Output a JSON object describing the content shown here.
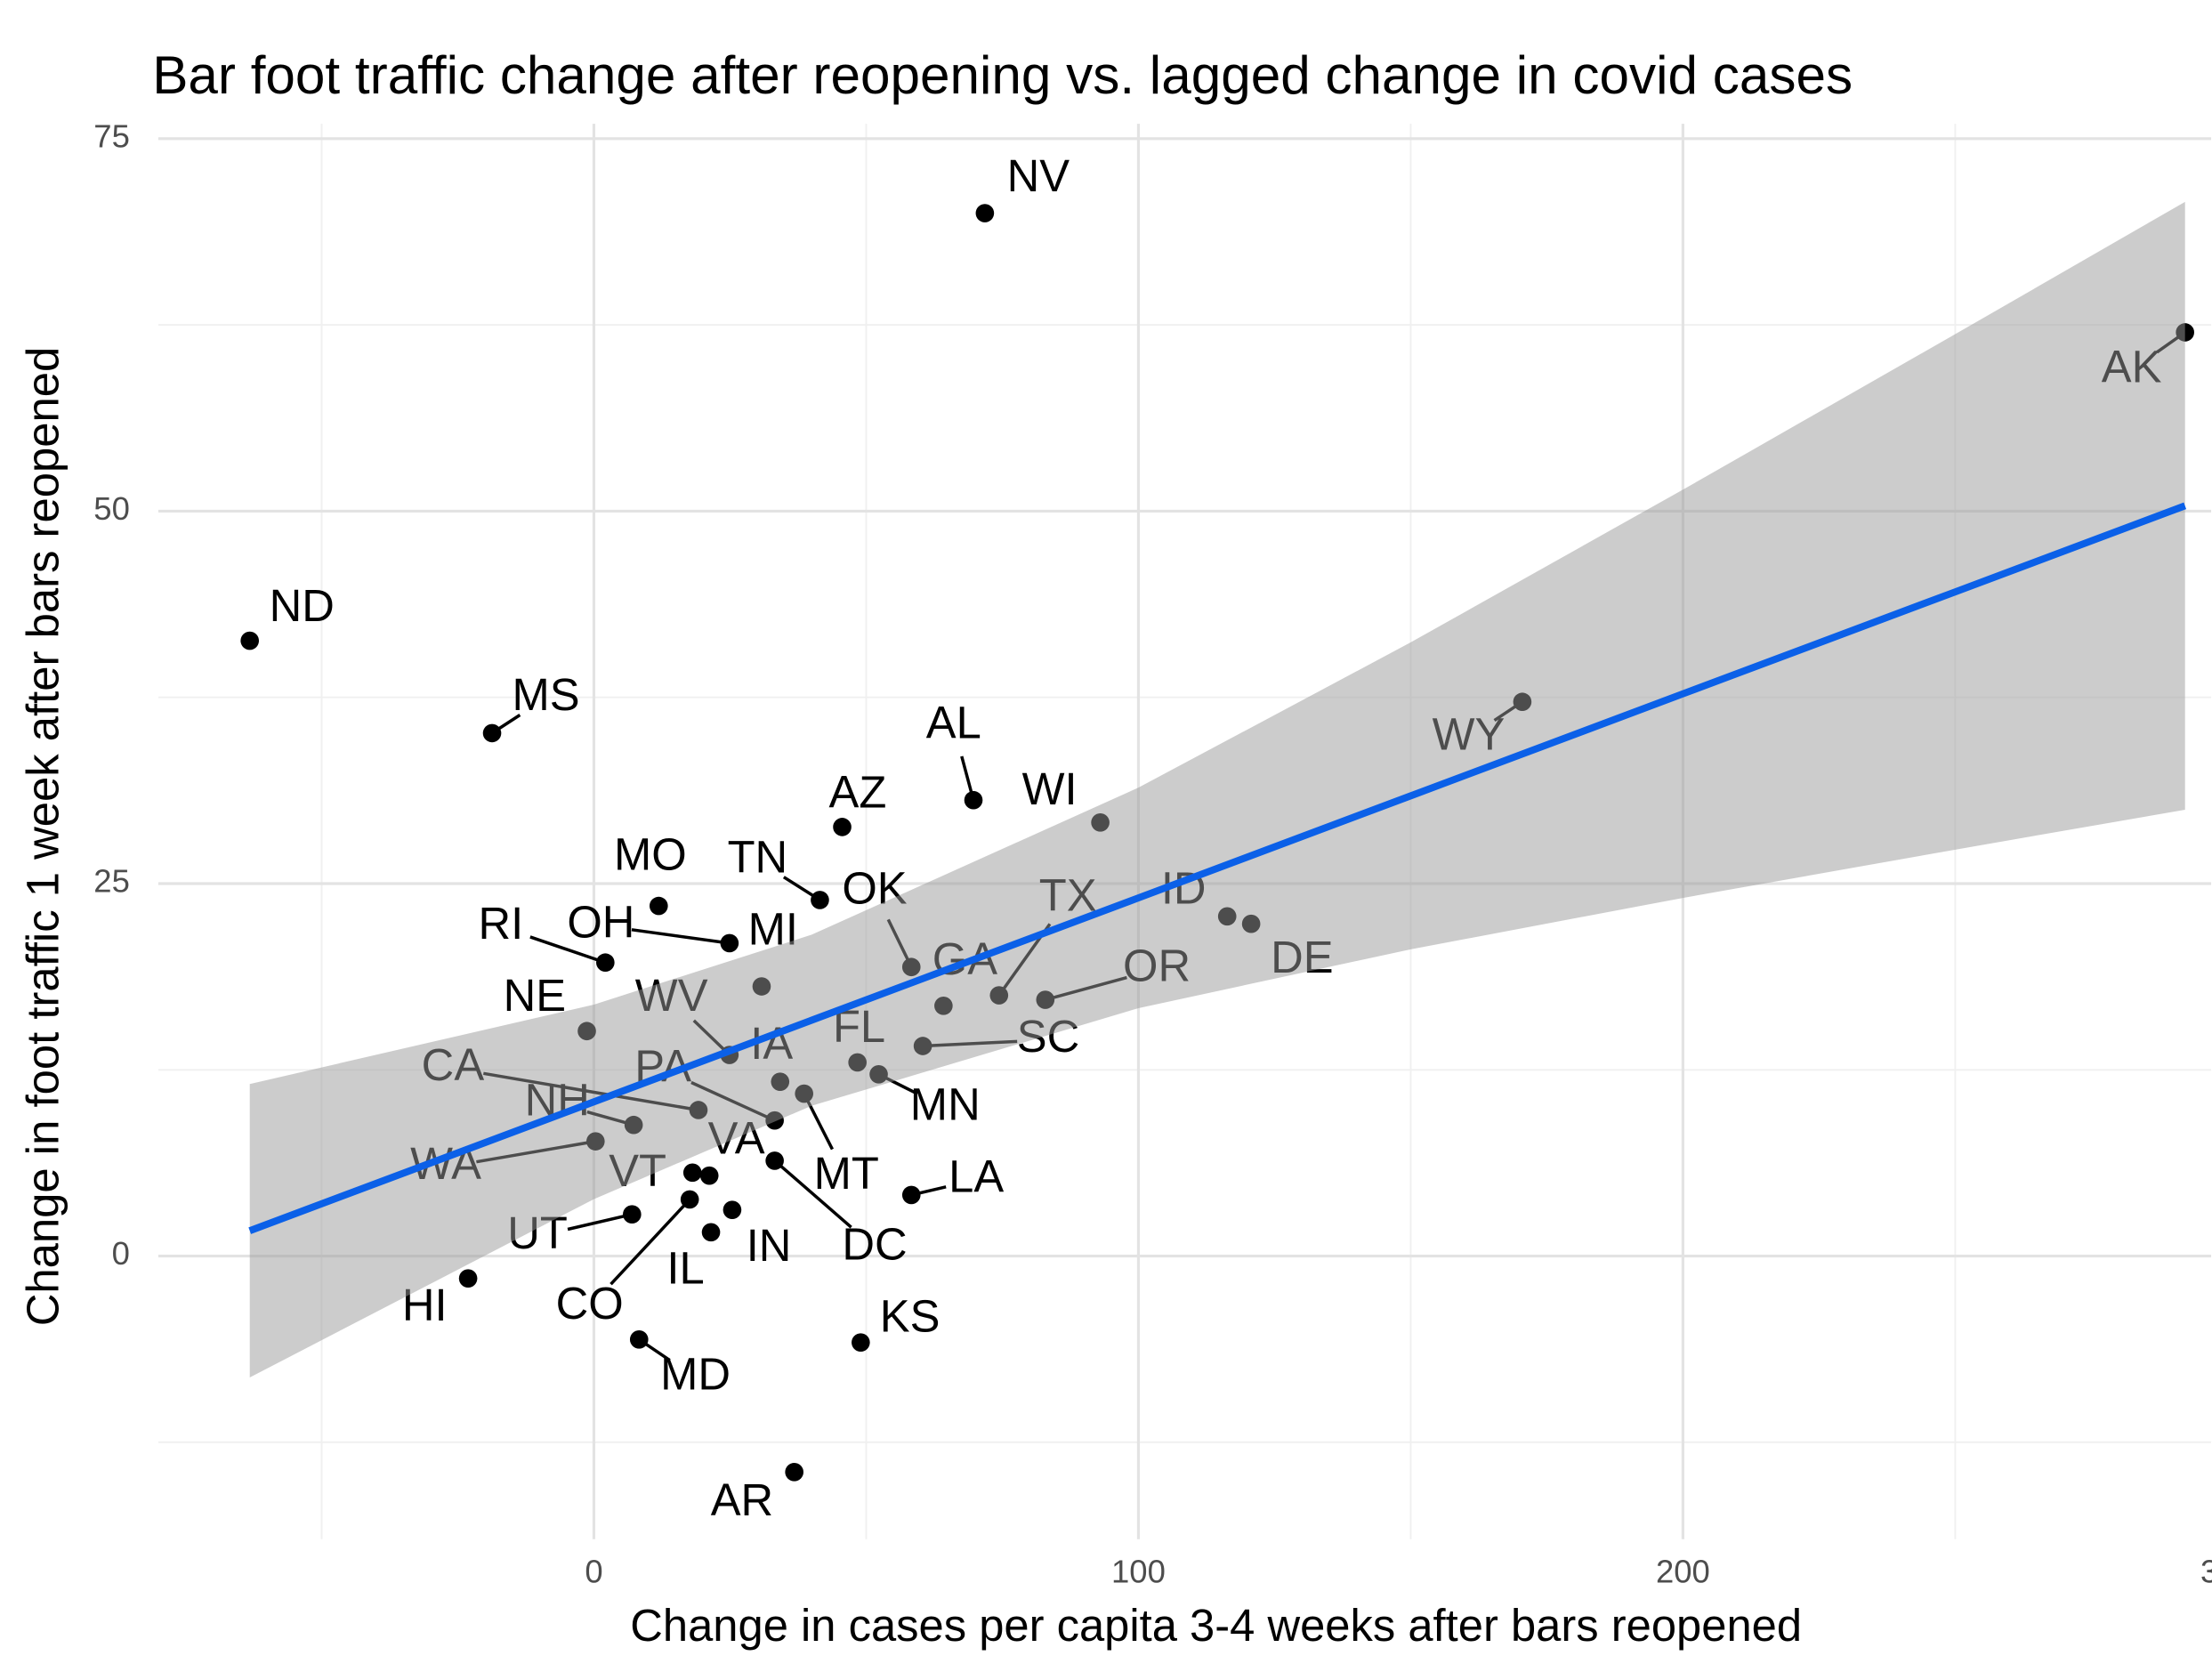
{
  "chart_data": {
    "type": "scatter",
    "title": "Bar foot traffic change after reopening vs. lagged change in covid cases",
    "x_label": "Change in cases per capita 3-4 weeks after bars reopened",
    "y_label": "Change in foot traffic 1 week after bars reopened",
    "point_labels": [
      "NV",
      "AK",
      "ND",
      "MS",
      "WY",
      "AL",
      "WI",
      "AZ",
      "MO",
      "TN",
      "ID",
      "DE",
      "OH",
      "MI",
      "RI",
      "OK",
      "GA",
      "TX",
      "OR",
      "NE",
      "WV",
      "IA",
      "FL",
      "SC",
      "MN",
      "CA",
      "PA",
      "MT",
      "NH",
      "WA",
      "VA",
      "VT",
      "DC",
      "LA",
      "UT",
      "CO",
      "IN",
      "IL",
      "HI",
      "MD",
      "KS",
      "AR"
    ],
    "x": [
      71.8,
      292.2,
      -63.2,
      -18.7,
      170.5,
      69.7,
      93.0,
      45.6,
      11.9,
      41.5,
      116.3,
      120.7,
      24.9,
      30.8,
      2.1,
      58.3,
      64.2,
      74.4,
      82.9,
      -1.3,
      24.9,
      34.2,
      48.4,
      60.4,
      52.3,
      19.2,
      33.2,
      38.6,
      7.3,
      0.3,
      21.2,
      18.1,
      33.2,
      58.3,
      7.0,
      17.6,
      25.4,
      21.5,
      -23.1,
      8.3,
      49.0,
      36.8
    ],
    "values": [
      70.0,
      62.0,
      41.3,
      35.1,
      37.2,
      30.6,
      29.1,
      28.8,
      23.5,
      23.9,
      22.8,
      22.3,
      21.0,
      18.1,
      19.7,
      19.4,
      16.8,
      17.5,
      17.2,
      15.1,
      13.5,
      11.7,
      13.0,
      14.1,
      12.2,
      9.8,
      9.1,
      10.9,
      8.8,
      7.7,
      5.4,
      5.6,
      6.4,
      4.1,
      2.8,
      3.8,
      3.1,
      1.6,
      -1.5,
      -5.6,
      -5.8,
      -14.5
    ],
    "color": "#000000",
    "fit": {
      "x": [
        -63.2,
        0,
        40,
        100,
        150,
        200,
        250,
        292.2
      ],
      "values": [
        1.7,
        10.35,
        15.83,
        24.04,
        30.89,
        37.74,
        44.58,
        50.36
      ],
      "lower": [
        -8.15,
        3.82,
        10.09,
        16.64,
        20.59,
        24.04,
        27.28,
        29.96
      ],
      "upper": [
        11.55,
        16.88,
        21.57,
        31.44,
        41.19,
        51.44,
        61.88,
        70.76
      ],
      "color": "#0b60e8",
      "band_color": "#999999"
    },
    "xlim": [
      -80,
      297
    ],
    "ylim": [
      -19,
      76
    ],
    "xticks": [
      0,
      100,
      200,
      300
    ],
    "yticks": [
      0,
      25,
      50,
      75
    ],
    "xminor": [
      -50,
      50,
      150,
      250
    ],
    "yminor": [
      -12.5,
      12.5,
      37.5,
      62.5
    ],
    "grid": true
  }
}
